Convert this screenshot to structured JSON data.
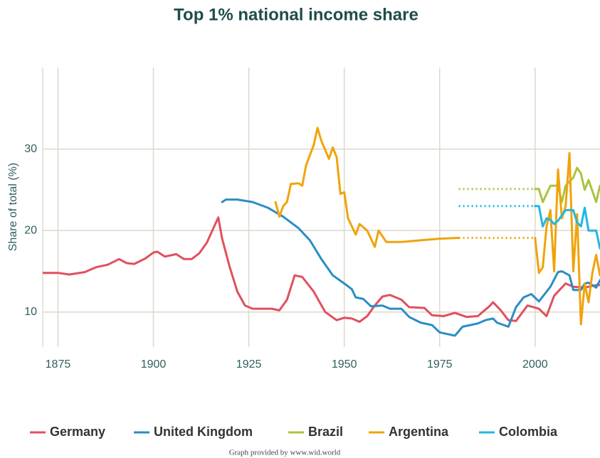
{
  "chart_data": {
    "type": "line",
    "title": "Top 1% national income share",
    "y_label": "Share of total (%)",
    "footer": "Graph provided by www.wid.world",
    "xlim": [
      1871,
      2017
    ],
    "xticks": [
      1875,
      1900,
      1925,
      1950,
      1975,
      2000
    ],
    "ylim": [
      5.7,
      40
    ],
    "yticks": [
      10,
      20,
      30
    ],
    "grid": true,
    "legend": "bottom",
    "series": [
      {
        "name": "Germany",
        "color": "#e0505e",
        "x": [
          1871,
          1875,
          1878,
          1882,
          1885,
          1888,
          1891,
          1893,
          1895,
          1898,
          1900,
          1901,
          1903,
          1905,
          1906,
          1908,
          1910,
          1912,
          1914,
          1917,
          1918,
          1920,
          1922,
          1924,
          1926,
          1928,
          1931,
          1933,
          1935,
          1937,
          1939,
          1942,
          1945,
          1948,
          1950,
          1952,
          1954,
          1956,
          1958,
          1960,
          1962,
          1965,
          1967,
          1971,
          1973,
          1976,
          1979,
          1982,
          1985,
          1988,
          1989,
          1991,
          1993,
          1995,
          1998,
          2001,
          2003,
          2005,
          2008,
          2010,
          2013,
          2016,
          2017
        ],
        "values": [
          14.8,
          14.8,
          14.6,
          14.9,
          15.5,
          15.8,
          16.5,
          16.0,
          15.9,
          16.6,
          17.3,
          17.4,
          16.8,
          17.0,
          17.1,
          16.5,
          16.5,
          17.2,
          18.5,
          21.6,
          19.0,
          15.5,
          12.5,
          10.8,
          10.4,
          10.4,
          10.4,
          10.2,
          11.5,
          14.5,
          14.3,
          12.5,
          10.0,
          9.0,
          9.3,
          9.2,
          8.8,
          9.5,
          10.8,
          11.9,
          12.1,
          11.5,
          10.6,
          10.5,
          9.6,
          9.5,
          9.9,
          9.4,
          9.5,
          10.7,
          11.2,
          10.2,
          9.0,
          8.9,
          10.8,
          10.4,
          9.5,
          12.0,
          13.5,
          13.1,
          13.0,
          13.3,
          13.3
        ]
      },
      {
        "name": "United Kingdom",
        "color": "#2a8ec4",
        "x": [
          1918,
          1919,
          1922,
          1926,
          1930,
          1934,
          1938,
          1941,
          1944,
          1947,
          1950,
          1952,
          1953,
          1955,
          1957,
          1960,
          1962,
          1965,
          1967,
          1970,
          1973,
          1975,
          1977,
          1979,
          1981,
          1983,
          1985,
          1987,
          1989,
          1990,
          1993,
          1995,
          1997,
          1999,
          2001,
          2004,
          2006,
          2007,
          2009,
          2010,
          2012,
          2013,
          2014,
          2016,
          2017
        ],
        "values": [
          23.5,
          23.8,
          23.8,
          23.5,
          22.8,
          21.7,
          20.3,
          18.8,
          16.5,
          14.5,
          13.5,
          12.8,
          11.8,
          11.6,
          10.7,
          10.8,
          10.4,
          10.4,
          9.4,
          8.7,
          8.4,
          7.5,
          7.3,
          7.1,
          8.2,
          8.4,
          8.6,
          9.0,
          9.2,
          8.7,
          8.2,
          10.6,
          11.8,
          12.2,
          11.3,
          13.1,
          14.9,
          15.0,
          14.5,
          12.7,
          12.7,
          13.5,
          13.6,
          13.0,
          13.9
        ]
      },
      {
        "name": "Brazil",
        "color": "#a8c440",
        "dotted_x": [
          1980,
          2000
        ],
        "x": [
          1980,
          2000,
          2001,
          2002,
          2004,
          2006,
          2007,
          2008,
          2010,
          2011,
          2012,
          2013,
          2014,
          2016,
          2017
        ],
        "values": [
          25.1,
          25.1,
          25.1,
          23.5,
          25.5,
          25.5,
          23.5,
          25.5,
          26.5,
          27.7,
          27.0,
          25.0,
          26.2,
          23.5,
          25.5
        ]
      },
      {
        "name": "Argentina",
        "color": "#f0a30a",
        "dotted_x": [
          1980,
          2000
        ],
        "x": [
          1932,
          1933,
          1934,
          1935,
          1936,
          1938,
          1939,
          1940,
          1942,
          1943,
          1944,
          1946,
          1947,
          1948,
          1949,
          1950,
          1951,
          1953,
          1954,
          1956,
          1958,
          1959,
          1961,
          1965,
          1970,
          1975,
          1980,
          2000,
          2001,
          2002,
          2003,
          2004,
          2005,
          2006,
          2007,
          2008,
          2009,
          2010,
          2011,
          2012,
          2013,
          2014,
          2015,
          2016,
          2017
        ],
        "values": [
          23.5,
          21.7,
          23.0,
          23.5,
          25.7,
          25.8,
          25.5,
          28.0,
          30.5,
          32.6,
          31.0,
          28.8,
          30.2,
          29.0,
          24.5,
          24.7,
          21.5,
          19.5,
          20.8,
          20.0,
          18.0,
          20.0,
          18.6,
          18.6,
          18.8,
          19.0,
          19.1,
          19.1,
          14.8,
          15.5,
          20.5,
          22.5,
          15.0,
          27.5,
          21.5,
          23.0,
          29.5,
          15.0,
          22.0,
          8.5,
          13.5,
          11.2,
          14.8,
          17.0,
          14.5
        ]
      },
      {
        "name": "Colombia",
        "color": "#1fb8e0",
        "dotted_x": [
          1980,
          2000
        ],
        "x": [
          1980,
          2000,
          2001,
          2002,
          2003,
          2004,
          2005,
          2006,
          2008,
          2010,
          2011,
          2012,
          2013,
          2014,
          2016,
          2017
        ],
        "values": [
          23.0,
          23.0,
          23.0,
          20.5,
          21.5,
          21.3,
          20.8,
          21.2,
          22.5,
          22.5,
          21.0,
          20.5,
          22.8,
          20.0,
          20.0,
          17.8
        ]
      }
    ]
  }
}
